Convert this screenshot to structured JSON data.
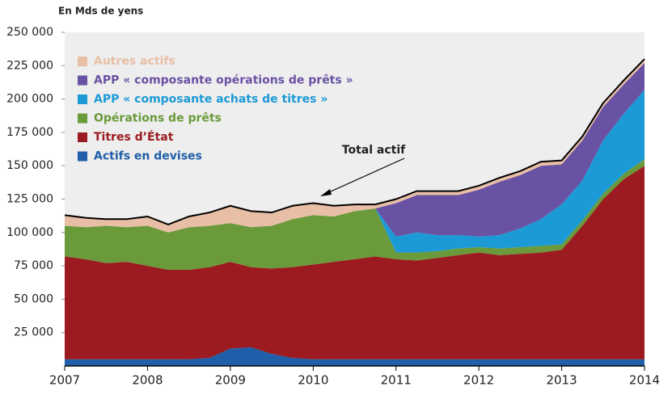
{
  "chart_data": {
    "type": "stacked_area",
    "y_label": "En Mds de yens",
    "annotation": "Total actif",
    "x": [
      2007,
      2007.25,
      2007.5,
      2007.75,
      2008,
      2008.25,
      2008.5,
      2008.75,
      2009,
      2009.25,
      2009.5,
      2009.75,
      2010,
      2010.25,
      2010.5,
      2010.75,
      2011,
      2011.25,
      2011.5,
      2011.75,
      2012,
      2012.25,
      2012.5,
      2012.75,
      2013,
      2013.25,
      2013.5,
      2013.75,
      2014
    ],
    "xlim": [
      2007,
      2014
    ],
    "xticks": [
      2007,
      2008,
      2009,
      2010,
      2011,
      2012,
      2013,
      2014
    ],
    "ylim": [
      0,
      250000
    ],
    "yticks": [
      {
        "value": 25000,
        "label": "25 000"
      },
      {
        "value": 50000,
        "label": "50 000"
      },
      {
        "value": 75000,
        "label": "75 000"
      },
      {
        "value": 100000,
        "label": "100 000"
      },
      {
        "value": 125000,
        "label": "125 000"
      },
      {
        "value": 150000,
        "label": "150 000"
      },
      {
        "value": 175000,
        "label": "175 000"
      },
      {
        "value": 200000,
        "label": "200 000"
      },
      {
        "value": 225000,
        "label": "225 000"
      },
      {
        "value": 250000,
        "label": "250 000"
      }
    ],
    "series": [
      {
        "name": "Actifs en devises",
        "color": "#1f5ea8",
        "values": [
          5000,
          5000,
          5000,
          5000,
          5000,
          5000,
          5000,
          6000,
          13000,
          14000,
          9000,
          6000,
          5000,
          5000,
          5000,
          5000,
          5000,
          5000,
          5000,
          5000,
          5000,
          5000,
          5000,
          5000,
          5000,
          5000,
          5000,
          5000,
          5000
        ]
      },
      {
        "name": "Titres d’État",
        "color": "#9b1b20",
        "values": [
          77000,
          75000,
          72000,
          73000,
          70000,
          67000,
          67000,
          68000,
          65000,
          60000,
          64000,
          68000,
          71000,
          73000,
          75000,
          77000,
          75000,
          74000,
          76000,
          78000,
          80000,
          78000,
          79000,
          80000,
          82000,
          100000,
          120000,
          135000,
          145000
        ]
      },
      {
        "name": "Opérations de prêts",
        "color": "#6a9a3a",
        "values": [
          23000,
          24000,
          28000,
          26000,
          30000,
          28000,
          32000,
          31000,
          29000,
          30000,
          32000,
          36000,
          37000,
          34000,
          36000,
          36000,
          5000,
          6000,
          5000,
          5000,
          4000,
          5000,
          5000,
          5000,
          4000,
          4000,
          4000,
          4000,
          5000
        ]
      },
      {
        "name": "APP « composante achats de titres »",
        "color": "#1b9ad6",
        "values": [
          0,
          0,
          0,
          0,
          0,
          0,
          0,
          0,
          0,
          0,
          0,
          0,
          0,
          0,
          0,
          0,
          12000,
          15000,
          12000,
          10000,
          8000,
          10000,
          14000,
          20000,
          30000,
          30000,
          40000,
          45000,
          52000
        ]
      },
      {
        "name": "APP « composante opérations de prêts »",
        "color": "#6952a3",
        "values": [
          0,
          0,
          0,
          0,
          0,
          0,
          0,
          0,
          0,
          0,
          0,
          0,
          0,
          0,
          0,
          0,
          25000,
          28000,
          30000,
          30000,
          35000,
          40000,
          40000,
          40000,
          30000,
          30000,
          25000,
          22000,
          20000
        ]
      },
      {
        "name": "Autres actifs",
        "color": "#e8bfa6",
        "values": [
          8000,
          7000,
          5000,
          6000,
          7000,
          6000,
          8000,
          10000,
          13000,
          12000,
          10000,
          10000,
          9000,
          8000,
          5000,
          3000,
          3000,
          3000,
          3000,
          3000,
          3000,
          3000,
          3000,
          3000,
          3000,
          3000,
          3000,
          3000,
          3000
        ]
      }
    ],
    "total": {
      "color": "#000000",
      "values": [
        113000,
        111000,
        110000,
        110000,
        112000,
        106000,
        112000,
        115000,
        120000,
        116000,
        115000,
        120000,
        122000,
        120000,
        121000,
        121000,
        125000,
        131000,
        131000,
        131000,
        135000,
        141000,
        146000,
        153000,
        154000,
        172000,
        197000,
        214000,
        230000
      ]
    }
  }
}
